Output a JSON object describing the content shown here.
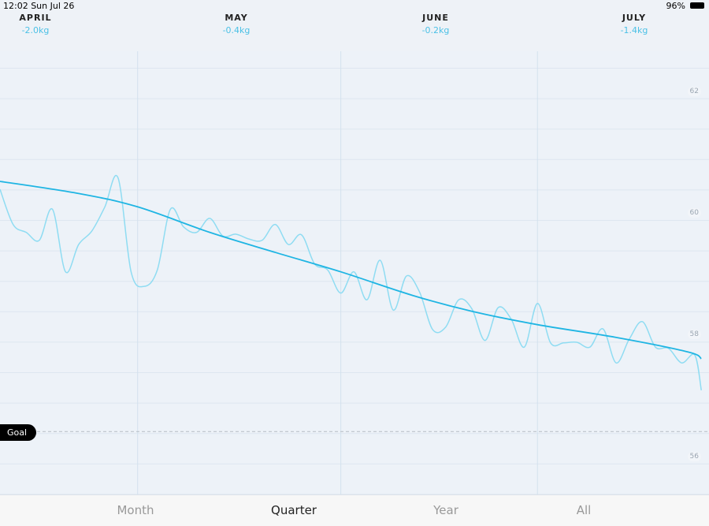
{
  "status_bar": {
    "time": "12:02",
    "date": "Sun Jul 26",
    "battery": "96%"
  },
  "months": [
    {
      "name": "APRIL",
      "delta": "-2.0kg"
    },
    {
      "name": "MAY",
      "delta": "-0.4kg"
    },
    {
      "name": "JUNE",
      "delta": "-0.2kg"
    },
    {
      "name": "JULY",
      "delta": "-1.4kg"
    }
  ],
  "goal_label": "Goal",
  "tabs": [
    {
      "label": "Month",
      "active": false
    },
    {
      "label": "Quarter",
      "active": true
    },
    {
      "label": "Year",
      "active": false
    },
    {
      "label": "All",
      "active": false
    }
  ],
  "colors": {
    "raw_line": "#8fdcf2",
    "trend_line": "#1fb5e3",
    "background": "#eef2f7",
    "goal_badge": "#000000"
  },
  "chart_data": {
    "type": "line",
    "y_ticks": [
      56,
      58,
      60,
      62
    ],
    "ylim": [
      55.4,
      62.7
    ],
    "x_range": [
      "2020-04-10",
      "2020-07-26"
    ],
    "month_dividers": [
      "2020-05-01",
      "2020-06-01",
      "2020-07-01"
    ],
    "goal": 56.4,
    "grid": true,
    "series": [
      {
        "role": "daily",
        "points": [
          [
            "2020-04-10",
            60.39
          ],
          [
            "2020-04-12",
            59.81
          ],
          [
            "2020-04-14",
            59.68
          ],
          [
            "2020-04-16",
            59.55
          ],
          [
            "2020-04-18",
            60.06
          ],
          [
            "2020-04-20",
            59.03
          ],
          [
            "2020-04-22",
            59.48
          ],
          [
            "2020-04-24",
            59.7
          ],
          [
            "2020-04-26",
            60.1
          ],
          [
            "2020-04-28",
            60.58
          ],
          [
            "2020-04-30",
            59.03
          ],
          [
            "2020-05-02",
            58.79
          ],
          [
            "2020-05-04",
            59.06
          ],
          [
            "2020-05-06",
            60.06
          ],
          [
            "2020-05-08",
            59.77
          ],
          [
            "2020-05-10",
            59.68
          ],
          [
            "2020-05-12",
            59.91
          ],
          [
            "2020-05-14",
            59.62
          ],
          [
            "2020-05-16",
            59.65
          ],
          [
            "2020-05-18",
            59.57
          ],
          [
            "2020-05-20",
            59.55
          ],
          [
            "2020-05-22",
            59.81
          ],
          [
            "2020-05-24",
            59.48
          ],
          [
            "2020-05-26",
            59.64
          ],
          [
            "2020-05-28",
            59.16
          ],
          [
            "2020-05-30",
            59.06
          ],
          [
            "2020-06-01",
            58.68
          ],
          [
            "2020-06-03",
            59.03
          ],
          [
            "2020-06-05",
            58.57
          ],
          [
            "2020-06-07",
            59.22
          ],
          [
            "2020-06-09",
            58.4
          ],
          [
            "2020-06-11",
            58.96
          ],
          [
            "2020-06-13",
            58.7
          ],
          [
            "2020-06-15",
            58.08
          ],
          [
            "2020-06-17",
            58.12
          ],
          [
            "2020-06-19",
            58.57
          ],
          [
            "2020-06-21",
            58.42
          ],
          [
            "2020-06-23",
            57.9
          ],
          [
            "2020-06-25",
            58.44
          ],
          [
            "2020-06-27",
            58.25
          ],
          [
            "2020-06-29",
            57.79
          ],
          [
            "2020-07-01",
            58.51
          ],
          [
            "2020-07-03",
            57.86
          ],
          [
            "2020-07-05",
            57.86
          ],
          [
            "2020-07-07",
            57.87
          ],
          [
            "2020-07-09",
            57.79
          ],
          [
            "2020-07-11",
            58.09
          ],
          [
            "2020-07-13",
            57.53
          ],
          [
            "2020-07-15",
            57.92
          ],
          [
            "2020-07-17",
            58.21
          ],
          [
            "2020-07-19",
            57.79
          ],
          [
            "2020-07-21",
            57.77
          ],
          [
            "2020-07-23",
            57.53
          ],
          [
            "2020-07-25",
            57.66
          ],
          [
            "2020-07-26",
            57.08
          ]
        ]
      },
      {
        "role": "trend",
        "points": [
          [
            "2020-04-10",
            60.52
          ],
          [
            "2020-04-22",
            60.32
          ],
          [
            "2020-05-01",
            60.1
          ],
          [
            "2020-05-12",
            59.68
          ],
          [
            "2020-05-22",
            59.35
          ],
          [
            "2020-06-01",
            59.03
          ],
          [
            "2020-06-12",
            58.64
          ],
          [
            "2020-06-21",
            58.38
          ],
          [
            "2020-07-01",
            58.16
          ],
          [
            "2020-07-13",
            57.95
          ],
          [
            "2020-07-24",
            57.71
          ],
          [
            "2020-07-26",
            57.6
          ]
        ]
      }
    ]
  }
}
